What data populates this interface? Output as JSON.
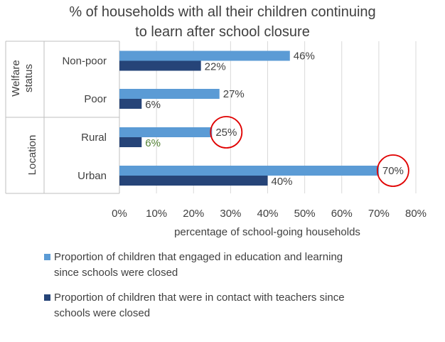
{
  "chart_data": {
    "type": "bar",
    "orientation": "horizontal",
    "title_line1": "% of households with all their children continuing",
    "title_line2": "to learn after school closure",
    "xlabel": "percentage of school-going households",
    "xlim": [
      0,
      80
    ],
    "x_ticks": [
      "0%",
      "10%",
      "20%",
      "30%",
      "40%",
      "50%",
      "60%",
      "70%",
      "80%"
    ],
    "groups": [
      {
        "label_line1": "Welfare",
        "label_line2": "status",
        "categories": [
          "Non-poor",
          "Poor"
        ]
      },
      {
        "label_line1": "Location",
        "label_line2": "",
        "categories": [
          "Rural",
          "Urban"
        ]
      }
    ],
    "categories": [
      "Non-poor",
      "Poor",
      "Rural",
      "Urban"
    ],
    "series": [
      {
        "name": "Proportion of children that engaged in education and learning since schools were closed",
        "legend_line1": "Proportion of children that engaged in education and learning",
        "legend_line2": "since schools were closed",
        "color": "#5B9BD5",
        "values": [
          46,
          27,
          25,
          70
        ],
        "labels": [
          "46%",
          "27%",
          "25%",
          "70%"
        ]
      },
      {
        "name": "Proportion of children that were in contact with teachers since schools were closed",
        "legend_line1": "Proportion of children that were in contact with teachers since",
        "legend_line2": "schools were closed",
        "color": "#264478",
        "values": [
          22,
          6,
          6,
          40
        ],
        "labels": [
          "22%",
          "6%",
          "6%",
          "40%"
        ]
      }
    ],
    "highlighted_labels": [
      "25%",
      "70%"
    ],
    "highlight_color": "#E00000",
    "green_label_color": "#548235",
    "grid": true
  }
}
